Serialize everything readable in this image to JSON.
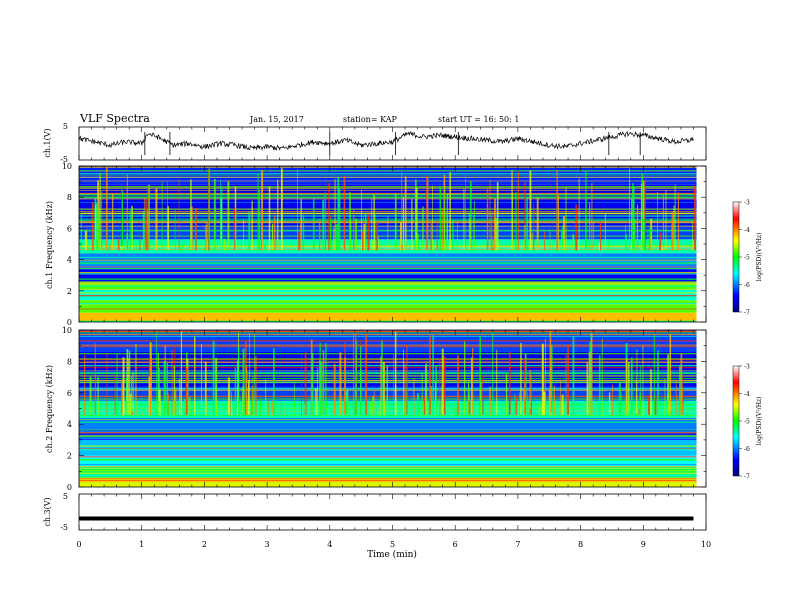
{
  "header": {
    "title": "VLF Spectra",
    "date": "Jan. 15, 2017",
    "station": "station= KAP",
    "start": "start UT =  16: 50: 1"
  },
  "chart_data": [
    {
      "type": "line",
      "panel": "ch1-waveform",
      "ylabel": "ch.1(V)",
      "ylim": [
        -5,
        5
      ],
      "yticks": [
        "5",
        "-5"
      ],
      "xlim": [
        0,
        10
      ],
      "series": [
        {
          "x": [
            0,
            0.25,
            0.5,
            0.75,
            1.0,
            1.1,
            1.25,
            1.5,
            1.75,
            2.0,
            2.25,
            2.5,
            2.75,
            3.0,
            3.25,
            3.5,
            3.75,
            4.0,
            4.25,
            4.5,
            4.75,
            5.0,
            5.25,
            5.5,
            5.75,
            6.0,
            6.25,
            6.5,
            6.75,
            7.0,
            7.25,
            7.5,
            7.75,
            8.0,
            8.25,
            8.5,
            8.75,
            9.0,
            9.25,
            9.5,
            9.75,
            9.8
          ],
          "values": [
            1.5,
            0.5,
            -0.5,
            0.5,
            0,
            3,
            2,
            -0.5,
            0,
            -1,
            0,
            -0.5,
            -1.5,
            -1,
            -1.5,
            -0.5,
            0.5,
            0,
            1,
            -0.5,
            0,
            0.5,
            3,
            2,
            2.5,
            2,
            1.5,
            1,
            0.5,
            1.5,
            0.5,
            -0.5,
            -1,
            0,
            1,
            2,
            3,
            2.5,
            1.5,
            0.5,
            1,
            1.5
          ]
        }
      ]
    },
    {
      "type": "heatmap",
      "panel": "ch1-spectrogram",
      "ylabel": "ch.1 Frequency (kHz)",
      "ylim": [
        0,
        10
      ],
      "yticks": [
        "0",
        "2",
        "4",
        "6",
        "8",
        "10"
      ],
      "xlim": [
        0,
        10
      ],
      "colorbar": {
        "label": "log(PSD)(V²/Hz)",
        "range": [
          -7,
          -3
        ],
        "ticks": [
          "-3",
          "-4",
          "-5",
          "-6",
          "-7"
        ]
      },
      "bands_khz": [
        {
          "from": 0,
          "to": 0.6,
          "level": -4.2
        },
        {
          "from": 0.6,
          "to": 1.4,
          "level": -4.8
        },
        {
          "from": 1.4,
          "to": 2.1,
          "level": -5.5
        },
        {
          "from": 2.1,
          "to": 2.6,
          "level": -4.8
        },
        {
          "from": 2.6,
          "to": 3.4,
          "level": -6.4
        },
        {
          "from": 3.4,
          "to": 4.4,
          "level": -6.0
        },
        {
          "from": 4.4,
          "to": 5.3,
          "level": -5.4
        },
        {
          "from": 5.3,
          "to": 6.2,
          "level": -6.2
        },
        {
          "from": 6.2,
          "to": 8.8,
          "level": -6.5
        },
        {
          "from": 8.8,
          "to": 10,
          "level": -6.3
        }
      ]
    },
    {
      "type": "heatmap",
      "panel": "ch2-spectrogram",
      "ylabel": "ch.2 Frequency (kHz)",
      "ylim": [
        0,
        10
      ],
      "yticks": [
        "0",
        "2",
        "4",
        "6",
        "8",
        "10"
      ],
      "xlim": [
        0,
        10
      ],
      "colorbar": {
        "label": "log(PSD)(V²/Hz)",
        "range": [
          -7,
          -3
        ],
        "ticks": [
          "-3",
          "-4",
          "-5",
          "-6",
          "-7"
        ]
      },
      "bands_khz": [
        {
          "from": 0,
          "to": 0.6,
          "level": -4.5
        },
        {
          "from": 0.6,
          "to": 1.3,
          "level": -5.2
        },
        {
          "from": 1.3,
          "to": 2.0,
          "level": -5.6
        },
        {
          "from": 2.0,
          "to": 3.0,
          "level": -5.8
        },
        {
          "from": 3.0,
          "to": 3.6,
          "level": -6.3
        },
        {
          "from": 3.6,
          "to": 4.4,
          "level": -6.0
        },
        {
          "from": 4.4,
          "to": 5.5,
          "level": -5.4
        },
        {
          "from": 5.5,
          "to": 6.4,
          "level": -6.2
        },
        {
          "from": 6.4,
          "to": 8.6,
          "level": -6.5
        },
        {
          "from": 8.6,
          "to": 10,
          "level": -6.2
        }
      ]
    },
    {
      "type": "line",
      "panel": "ch3-waveform",
      "ylabel": "ch.3(V)",
      "ylim": [
        -5,
        5
      ],
      "yticks": [
        "5",
        "-5"
      ],
      "xlim": [
        0,
        10
      ],
      "xlabel": "Time (min)",
      "xticks": [
        "0",
        "1",
        "2",
        "3",
        "4",
        "5",
        "6",
        "7",
        "8",
        "9",
        "10"
      ],
      "series": [
        {
          "x": [
            0,
            9.8
          ],
          "values": [
            -1.8,
            -1.8
          ]
        }
      ]
    }
  ]
}
